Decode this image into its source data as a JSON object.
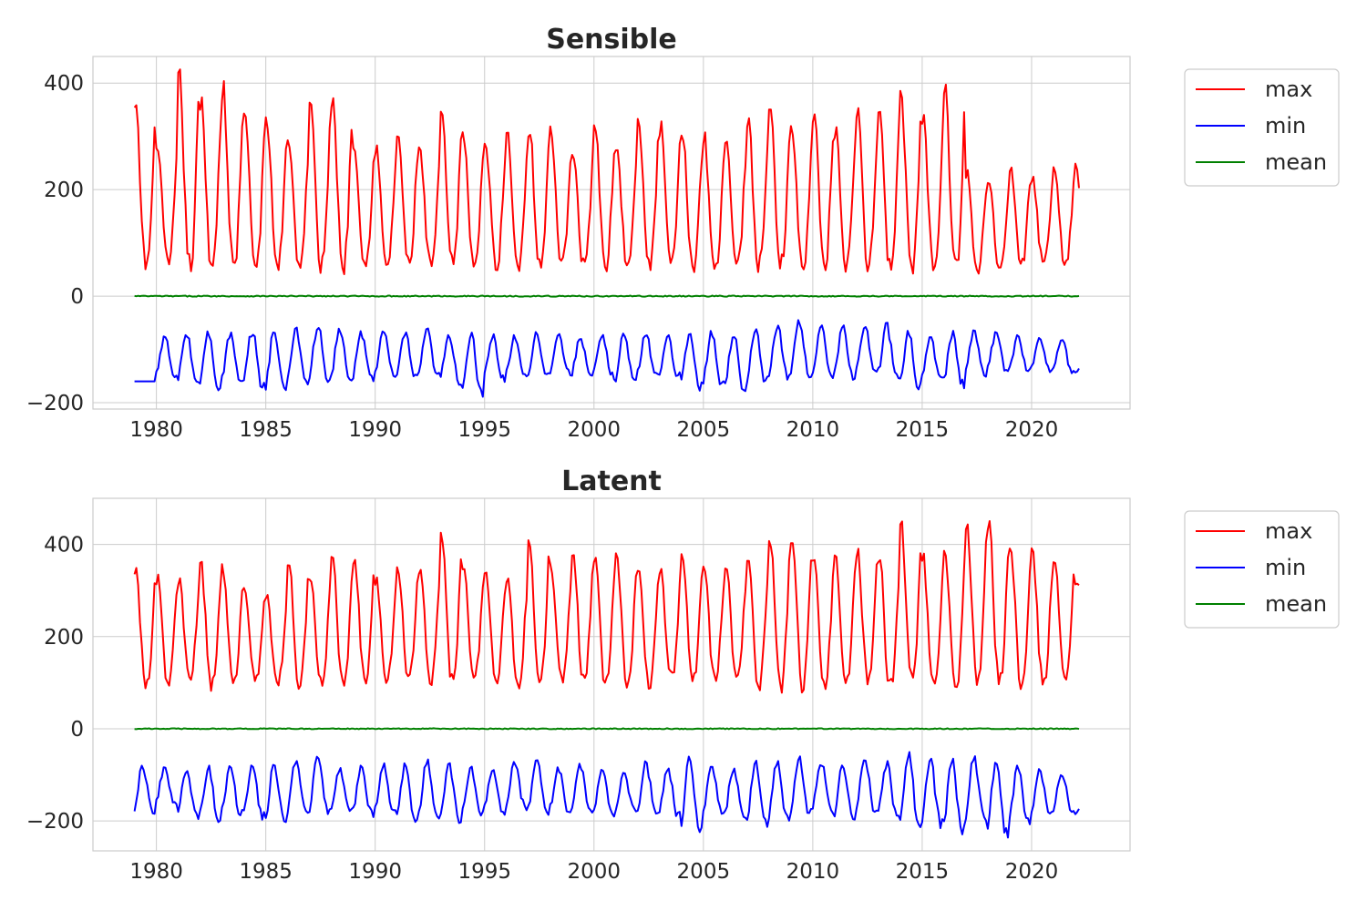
{
  "chart_data": [
    {
      "type": "line",
      "title": "Sensible",
      "xlabel": "",
      "ylabel": "",
      "xlim": [
        1977.1,
        2024.5
      ],
      "ylim": [
        -212,
        450
      ],
      "x_ticks": [
        1980,
        1985,
        1990,
        1995,
        2000,
        2005,
        2010,
        2015,
        2020
      ],
      "y_ticks": [
        -200,
        0,
        200,
        400
      ],
      "y_tick_labels": [
        "−200",
        "0",
        "200",
        "400"
      ],
      "grid": true,
      "legend_position": "outside-upper-right",
      "time_range": [
        "1979-01",
        "2022-03"
      ],
      "x": [
        1979.0,
        1980.0,
        1981.0,
        1982.0,
        1983.0,
        1984.0,
        1985.0,
        1986.0,
        1987.0,
        1988.0,
        1989.0,
        1990.0,
        1991.0,
        1992.0,
        1993.0,
        1994.0,
        1995.0,
        1996.0,
        1997.0,
        1998.0,
        1999.0,
        2000.0,
        2001.0,
        2002.0,
        2003.0,
        2004.0,
        2005.0,
        2006.0,
        2007.0,
        2008.0,
        2009.0,
        2010.0,
        2011.0,
        2012.0,
        2013.0,
        2014.0,
        2015.0,
        2016.0,
        2017.0,
        2018.0,
        2019.0,
        2020.0,
        2021.0,
        2022.0
      ],
      "series": [
        {
          "name": "max",
          "color": "#ff0000",
          "values": [
            355,
            290,
            415,
            365,
            393,
            335,
            331,
            295,
            360,
            378,
            290,
            280,
            305,
            275,
            340,
            300,
            292,
            305,
            320,
            310,
            275,
            325,
            280,
            325,
            320,
            310,
            300,
            300,
            335,
            355,
            315,
            350,
            310,
            345,
            340,
            375,
            340,
            390,
            235,
            220,
            250,
            225,
            245,
            248
          ],
          "annual_min": [
            60,
            60,
            58,
            60,
            55,
            58,
            57,
            60,
            55,
            58,
            60,
            58,
            60,
            58,
            60,
            58,
            60,
            58,
            60,
            60,
            58,
            60,
            58,
            58,
            58,
            55,
            52,
            58,
            58,
            60,
            58,
            60,
            58,
            58,
            58,
            55,
            58,
            55,
            52,
            58,
            60,
            65,
            62,
            62
          ]
        },
        {
          "name": "min",
          "color": "#0000ff",
          "values": [
            -160,
            -75,
            -70,
            -70,
            -70,
            -65,
            -65,
            -60,
            -55,
            -60,
            -70,
            -65,
            -70,
            -65,
            -70,
            -70,
            -75,
            -75,
            -70,
            -70,
            -75,
            -75,
            -70,
            -70,
            -75,
            -70,
            -70,
            -70,
            -65,
            -55,
            -50,
            -55,
            -60,
            -55,
            -55,
            -70,
            -70,
            -70,
            -60,
            -70,
            -75,
            -80,
            -80,
            -130
          ],
          "annual_min": [
            -160,
            -155,
            -160,
            -170,
            -165,
            -170,
            -175,
            -160,
            -160,
            -160,
            -155,
            -150,
            -155,
            -150,
            -160,
            -185,
            -155,
            -150,
            -150,
            -145,
            -150,
            -150,
            -160,
            -150,
            -150,
            -170,
            -165,
            -175,
            -160,
            -150,
            -145,
            -155,
            -150,
            -145,
            -150,
            -170,
            -160,
            -165,
            -150,
            -140,
            -140,
            -140,
            -140,
            -145
          ]
        },
        {
          "name": "mean",
          "color": "#008000",
          "values": [
            0,
            0,
            0,
            0,
            0,
            0,
            0,
            0,
            0,
            0,
            0,
            0,
            0,
            0,
            0,
            0,
            0,
            0,
            0,
            0,
            0,
            0,
            0,
            0,
            0,
            0,
            0,
            0,
            0,
            0,
            0,
            0,
            0,
            0,
            0,
            0,
            0,
            0,
            0,
            0,
            0,
            0,
            0,
            0
          ]
        }
      ]
    },
    {
      "type": "line",
      "title": "Latent",
      "xlabel": "",
      "ylabel": "",
      "xlim": [
        1977.1,
        2024.5
      ],
      "ylim": [
        -265,
        500
      ],
      "x_ticks": [
        1980,
        1985,
        1990,
        1995,
        2000,
        2005,
        2010,
        2015,
        2020
      ],
      "y_ticks": [
        -200,
        0,
        200,
        400
      ],
      "y_tick_labels": [
        "−200",
        "0",
        "200",
        "400"
      ],
      "grid": true,
      "legend_position": "outside-upper-right",
      "time_range": [
        "1979-01",
        "2022-03"
      ],
      "x": [
        1979.0,
        1980.0,
        1981.0,
        1982.0,
        1983.0,
        1984.0,
        1985.0,
        1986.0,
        1987.0,
        1988.0,
        1989.0,
        1990.0,
        1991.0,
        1992.0,
        1993.0,
        1994.0,
        1995.0,
        1996.0,
        1997.0,
        1998.0,
        1999.0,
        2000.0,
        2001.0,
        2002.0,
        2003.0,
        2004.0,
        2005.0,
        2006.0,
        2007.0,
        2008.0,
        2009.0,
        2010.0,
        2011.0,
        2012.0,
        2013.0,
        2014.0,
        2015.0,
        2016.0,
        2017.0,
        2018.0,
        2019.0,
        2020.0,
        2021.0,
        2022.0
      ],
      "series": [
        {
          "name": "max",
          "color": "#ff0000",
          "values": [
            355,
            330,
            325,
            355,
            350,
            300,
            295,
            365,
            330,
            380,
            380,
            325,
            350,
            355,
            420,
            360,
            340,
            335,
            415,
            350,
            375,
            380,
            380,
            350,
            345,
            375,
            355,
            360,
            370,
            410,
            430,
            370,
            380,
            395,
            375,
            450,
            370,
            395,
            450,
            460,
            390,
            385,
            380,
            315
          ],
          "annual_min": [
            95,
            100,
            110,
            95,
            100,
            110,
            100,
            100,
            100,
            90,
            110,
            110,
            110,
            105,
            100,
            110,
            105,
            95,
            100,
            105,
            110,
            100,
            100,
            100,
            110,
            105,
            105,
            100,
            95,
            95,
            95,
            100,
            100,
            100,
            95,
            100,
            100,
            95,
            100,
            100,
            100,
            100,
            100,
            295
          ]
        },
        {
          "name": "min",
          "color": "#0000ff",
          "values": [
            -80,
            -85,
            -90,
            -85,
            -80,
            -80,
            -80,
            -70,
            -65,
            -85,
            -85,
            -80,
            -80,
            -65,
            -75,
            -80,
            -85,
            -70,
            -70,
            -85,
            -80,
            -85,
            -90,
            -75,
            -85,
            -65,
            -80,
            -85,
            -70,
            -75,
            -65,
            -70,
            -75,
            -60,
            -75,
            -50,
            -70,
            -70,
            -60,
            -75,
            -85,
            -90,
            -95,
            -160
          ],
          "annual_min": [
            -180,
            -165,
            -190,
            -195,
            -185,
            -190,
            -200,
            -185,
            -180,
            -175,
            -185,
            -180,
            -200,
            -195,
            -195,
            -190,
            -180,
            -170,
            -180,
            -180,
            -180,
            -185,
            -180,
            -185,
            -190,
            -215,
            -185,
            -190,
            -205,
            -195,
            -185,
            -175,
            -190,
            -180,
            -185,
            -210,
            -205,
            -220,
            -195,
            -230,
            -200,
            -190,
            -180,
            -190
          ]
        },
        {
          "name": "mean",
          "color": "#008000",
          "values": [
            0,
            0,
            0,
            0,
            0,
            0,
            0,
            0,
            0,
            0,
            0,
            0,
            0,
            0,
            0,
            0,
            0,
            0,
            0,
            0,
            0,
            0,
            0,
            0,
            0,
            0,
            0,
            0,
            0,
            0,
            0,
            0,
            0,
            0,
            0,
            0,
            0,
            0,
            0,
            0,
            0,
            0,
            0,
            0
          ]
        }
      ]
    }
  ]
}
